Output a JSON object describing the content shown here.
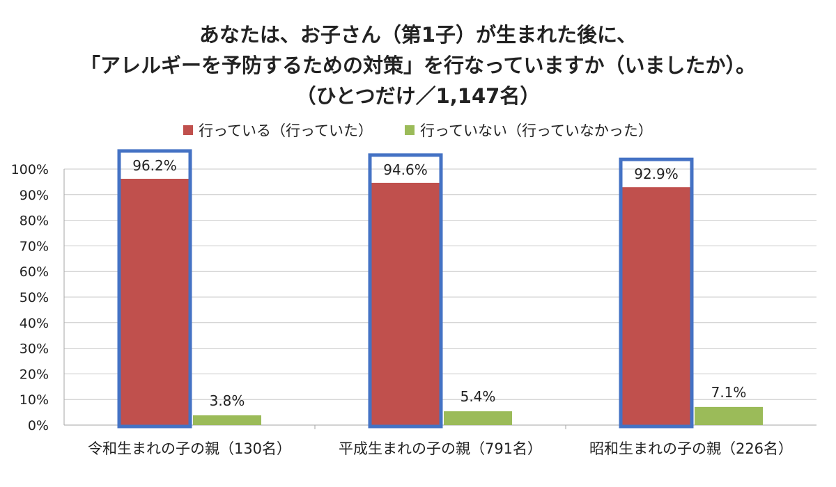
{
  "chart_data": {
    "type": "bar",
    "title_lines": [
      "あなたは、お子さん（第1子）が生まれた後に、",
      "「アレルギーを予防するための対策」を行なっていますか（いましたか）。",
      "（ひとつだけ／1,147名）"
    ],
    "categories": [
      "令和生まれの子の親（130名）",
      "平成生まれの子の親（791名）",
      "昭和生まれの子の親（226名）"
    ],
    "series": [
      {
        "name": "行っている（行っていた）",
        "color": "#C0504D",
        "values": [
          96.2,
          94.6,
          92.9
        ],
        "labels": [
          "96.2%",
          "94.6%",
          "92.9%"
        ]
      },
      {
        "name": "行っていない（行っていなかった）",
        "color": "#9BBB59",
        "values": [
          3.8,
          5.4,
          7.1
        ],
        "labels": [
          "3.8%",
          "5.4%",
          "7.1%"
        ]
      }
    ],
    "y_ticks": [
      "0%",
      "10%",
      "20%",
      "30%",
      "40%",
      "50%",
      "60%",
      "70%",
      "80%",
      "90%",
      "100%"
    ],
    "ylim": [
      0,
      100
    ],
    "highlight_color": "#4472C4",
    "grid": true,
    "legend_position": "top"
  }
}
